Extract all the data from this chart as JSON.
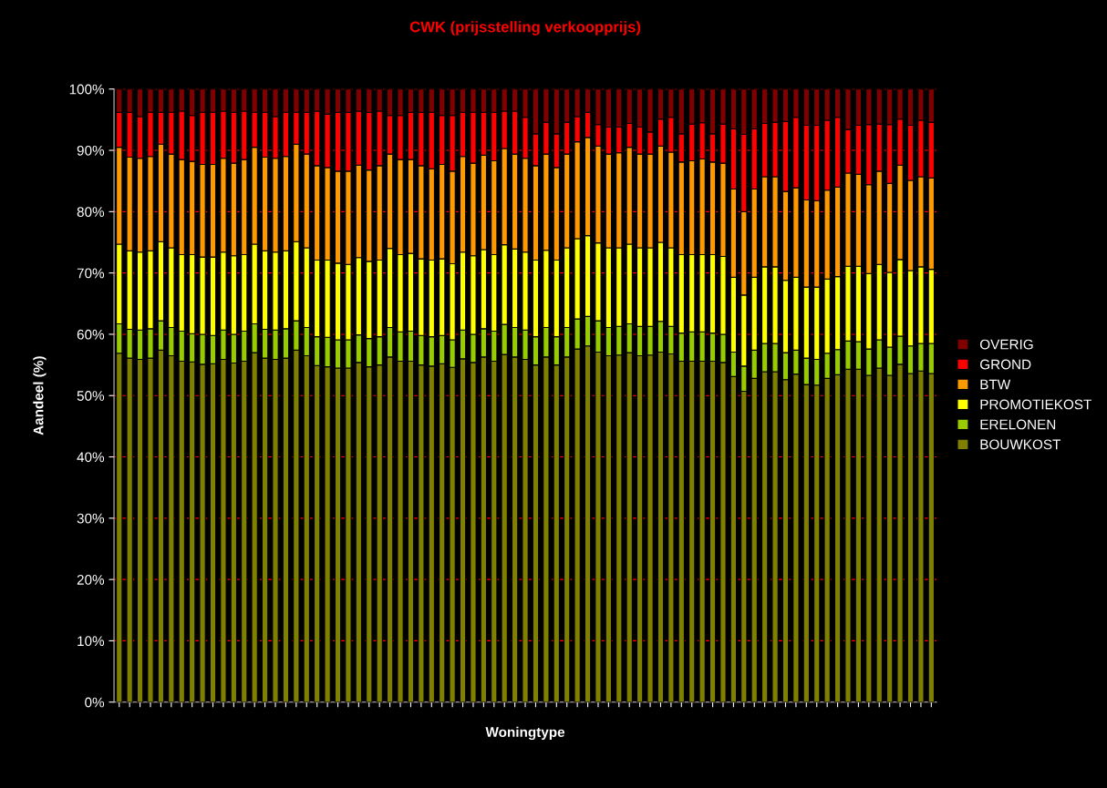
{
  "chart_data": {
    "type": "bar",
    "stacked": true,
    "title": "CWK (prijsstelling verkoopprijs)",
    "xlabel": "Woningtype",
    "ylabel": "Aandeel (%)",
    "categories": [
      null,
      null,
      null,
      null,
      null,
      null,
      null,
      null,
      null,
      null,
      null,
      null,
      null,
      null,
      null,
      null,
      null,
      null,
      null,
      null,
      null,
      null,
      null,
      null,
      null,
      null,
      null,
      null,
      null,
      null,
      null,
      null,
      null,
      null,
      null,
      null,
      null,
      null,
      null,
      null,
      null,
      null,
      null,
      null,
      null,
      null,
      null,
      null,
      null,
      null,
      null,
      null,
      null,
      null,
      null,
      null,
      null,
      null,
      null,
      null,
      null,
      null,
      null,
      null,
      null,
      null,
      null,
      null,
      null,
      null,
      null,
      null,
      null,
      null,
      null,
      null,
      null,
      null,
      null
    ],
    "ylim": [
      0,
      100
    ],
    "yticks": [
      {
        "value": 0,
        "label": "0%"
      },
      {
        "value": 10,
        "label": "10%"
      },
      {
        "value": 20,
        "label": "20%"
      },
      {
        "value": 30,
        "label": "30%"
      },
      {
        "value": 40,
        "label": "40%"
      },
      {
        "value": 50,
        "label": "50%"
      },
      {
        "value": 60,
        "label": "60%"
      },
      {
        "value": 70,
        "label": "70%"
      },
      {
        "value": 80,
        "label": "80%"
      },
      {
        "value": 90,
        "label": "90%"
      },
      {
        "value": 100,
        "label": "100%"
      }
    ],
    "grid": "y",
    "legend": "right",
    "series": [
      {
        "name": "BOUWKOST",
        "color": "#808000",
        "values": [
          56.9,
          56.1,
          55.9,
          56.1,
          57.4,
          56.5,
          55.6,
          55.5,
          55.1,
          55.2,
          55.9,
          55.3,
          55.6,
          57.0,
          56.1,
          55.9,
          56.1,
          57.4,
          56.5,
          54.9,
          54.7,
          54.5,
          54.5,
          55.4,
          54.7,
          55.0,
          56.3,
          55.6,
          55.6,
          55.0,
          54.8,
          55.2,
          54.6,
          56.0,
          55.4,
          56.3,
          55.6,
          56.7,
          56.3,
          55.9,
          55.0,
          56.3,
          55.0,
          56.3,
          57.6,
          58.1,
          57.1,
          56.5,
          56.6,
          57.0,
          56.5,
          56.6,
          57.1,
          56.8,
          55.6,
          55.6,
          55.6,
          55.6,
          55.4,
          53.1,
          50.7,
          52.8,
          53.9,
          53.9,
          52.6,
          53.5,
          51.8,
          51.7,
          52.8,
          53.4,
          54.3,
          54.3,
          53.3,
          54.5,
          53.3,
          55.1,
          53.6,
          54.0,
          53.6
        ]
      },
      {
        "name": "ERELONEN",
        "color": "#99cc00",
        "values": [
          4.8,
          4.7,
          4.8,
          4.8,
          4.8,
          4.6,
          4.9,
          4.6,
          4.9,
          4.6,
          4.8,
          4.7,
          4.9,
          4.7,
          4.7,
          4.8,
          4.8,
          4.8,
          4.6,
          4.7,
          4.8,
          4.6,
          4.6,
          4.5,
          4.6,
          4.6,
          4.8,
          4.8,
          4.9,
          4.8,
          4.8,
          4.6,
          4.5,
          4.7,
          4.6,
          4.6,
          4.9,
          4.9,
          4.8,
          4.8,
          4.6,
          4.8,
          4.6,
          4.8,
          4.9,
          4.8,
          5.1,
          4.6,
          4.7,
          4.7,
          4.8,
          4.7,
          5.0,
          4.5,
          4.6,
          4.8,
          4.8,
          4.6,
          4.6,
          4.0,
          4.1,
          4.6,
          4.6,
          4.6,
          4.4,
          3.9,
          4.3,
          4.2,
          4.1,
          4.1,
          4.6,
          4.5,
          4.3,
          4.6,
          4.6,
          4.6,
          4.5,
          4.5,
          4.9
        ]
      },
      {
        "name": "PROMOTIEKOST",
        "color": "#ffff00",
        "values": [
          13.0,
          12.8,
          12.7,
          12.7,
          12.9,
          13.0,
          12.5,
          12.9,
          12.6,
          12.8,
          12.7,
          12.8,
          12.5,
          13.0,
          12.8,
          12.7,
          12.7,
          12.9,
          13.0,
          12.5,
          12.6,
          12.5,
          12.3,
          12.6,
          12.6,
          12.5,
          12.9,
          12.6,
          12.7,
          12.5,
          12.5,
          12.5,
          12.4,
          12.7,
          12.8,
          12.9,
          12.5,
          13.0,
          12.8,
          12.7,
          12.5,
          12.6,
          12.5,
          13.0,
          13.1,
          13.2,
          12.7,
          13.0,
          12.8,
          13.0,
          12.8,
          12.8,
          12.9,
          12.8,
          12.8,
          12.6,
          12.6,
          12.8,
          12.7,
          12.2,
          11.6,
          11.9,
          12.5,
          12.5,
          11.8,
          11.9,
          11.6,
          11.8,
          12.1,
          11.9,
          12.2,
          12.3,
          12.3,
          12.3,
          12.2,
          12.5,
          12.3,
          12.5,
          12.1
        ]
      },
      {
        "name": "BTW",
        "color": "#ff9900",
        "values": [
          15.8,
          15.3,
          15.3,
          15.4,
          15.9,
          15.3,
          15.5,
          15.2,
          15.1,
          15.1,
          15.3,
          15.1,
          15.5,
          15.8,
          15.3,
          15.3,
          15.4,
          15.9,
          15.3,
          15.4,
          15.1,
          15.0,
          15.2,
          15.1,
          14.9,
          15.4,
          15.4,
          15.5,
          15.3,
          15.2,
          14.9,
          15.4,
          15.1,
          15.6,
          15.1,
          15.4,
          15.3,
          15.7,
          15.5,
          15.3,
          15.4,
          15.7,
          15.1,
          15.3,
          15.8,
          16.0,
          15.8,
          15.3,
          15.5,
          15.8,
          15.3,
          15.3,
          15.7,
          15.6,
          15.1,
          15.3,
          15.6,
          15.1,
          15.2,
          14.4,
          13.6,
          14.4,
          14.7,
          14.7,
          14.5,
          14.6,
          14.2,
          14.1,
          14.5,
          14.6,
          15.2,
          15.0,
          14.5,
          15.2,
          14.5,
          15.4,
          14.7,
          14.7,
          14.9
        ]
      },
      {
        "name": "GROND",
        "color": "#ff0000",
        "values": [
          5.7,
          7.3,
          6.8,
          7.2,
          5.2,
          6.8,
          7.9,
          7.5,
          8.5,
          8.5,
          7.7,
          8.3,
          7.9,
          5.7,
          7.3,
          6.8,
          7.2,
          5.2,
          6.8,
          8.9,
          8.7,
          9.6,
          9.6,
          8.8,
          9.4,
          8.9,
          6.3,
          7.2,
          7.7,
          8.7,
          9.2,
          8.0,
          9.1,
          7.2,
          8.3,
          7.0,
          7.9,
          6.1,
          7.0,
          6.7,
          5.2,
          5.2,
          5.5,
          5.2,
          4.1,
          4.1,
          3.5,
          4.4,
          4.2,
          3.9,
          4.4,
          3.6,
          4.4,
          5.7,
          4.6,
          6.0,
          5.9,
          4.6,
          6.4,
          9.8,
          12.6,
          9.8,
          8.7,
          8.9,
          11.4,
          11.5,
          12.2,
          12.3,
          11.4,
          11.4,
          7.1,
          8.0,
          9.8,
          7.7,
          9.6,
          7.5,
          9.0,
          9.2,
          9.1
        ]
      },
      {
        "name": "OVERIG",
        "color": "#800000",
        "values": [
          3.8,
          3.8,
          4.5,
          3.8,
          3.8,
          3.8,
          3.6,
          4.3,
          3.8,
          3.8,
          3.6,
          3.8,
          3.6,
          3.8,
          3.8,
          4.5,
          3.8,
          3.8,
          3.8,
          3.6,
          4.1,
          3.8,
          3.8,
          3.6,
          3.8,
          3.6,
          4.3,
          4.3,
          3.8,
          3.8,
          3.8,
          4.3,
          4.3,
          3.8,
          3.8,
          3.8,
          3.8,
          3.6,
          3.6,
          4.6,
          7.3,
          5.4,
          7.3,
          5.4,
          4.5,
          3.8,
          5.8,
          6.2,
          6.2,
          5.6,
          6.2,
          7.0,
          4.9,
          4.6,
          7.3,
          5.7,
          5.5,
          7.3,
          5.7,
          6.5,
          7.4,
          6.5,
          5.6,
          5.4,
          5.3,
          4.6,
          5.9,
          5.9,
          5.1,
          4.6,
          6.6,
          5.9,
          5.8,
          5.7,
          5.8,
          4.9,
          5.9,
          5.1,
          5.4
        ]
      }
    ]
  }
}
